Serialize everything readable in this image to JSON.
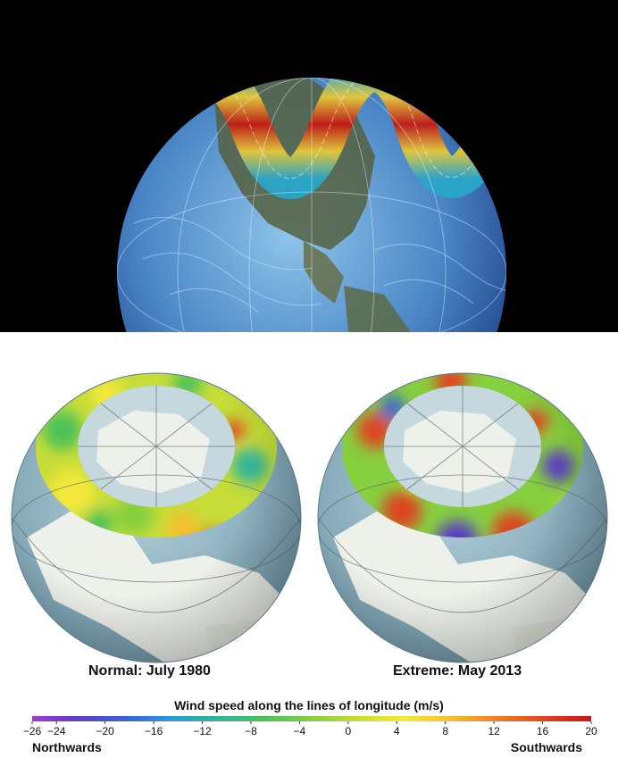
{
  "globes": [
    {
      "caption": "Normal: July 1980"
    },
    {
      "caption": "Extreme: May 2013"
    }
  ],
  "colorbar": {
    "title": "Wind speed along the lines of longitude (m/s)",
    "ticks": [
      "−26",
      "−24",
      "−20",
      "−16",
      "−12",
      "−8",
      "−4",
      "0",
      "4",
      "8",
      "12",
      "16",
      "20"
    ],
    "tick_values": [
      -26,
      -24,
      -20,
      -16,
      -12,
      -8,
      -4,
      0,
      4,
      8,
      12,
      16,
      20
    ],
    "range": [
      -26,
      20
    ],
    "colors": [
      "#a23bd0",
      "#5b3fc4",
      "#3a63d8",
      "#2f9ad3",
      "#33b59a",
      "#4cc15a",
      "#86cf3e",
      "#c9dd33",
      "#f4e93a",
      "#f7bd2e",
      "#ef7e22",
      "#df4422",
      "#c6161f"
    ],
    "left_label": "Northwards",
    "right_label": "Southwards"
  }
}
